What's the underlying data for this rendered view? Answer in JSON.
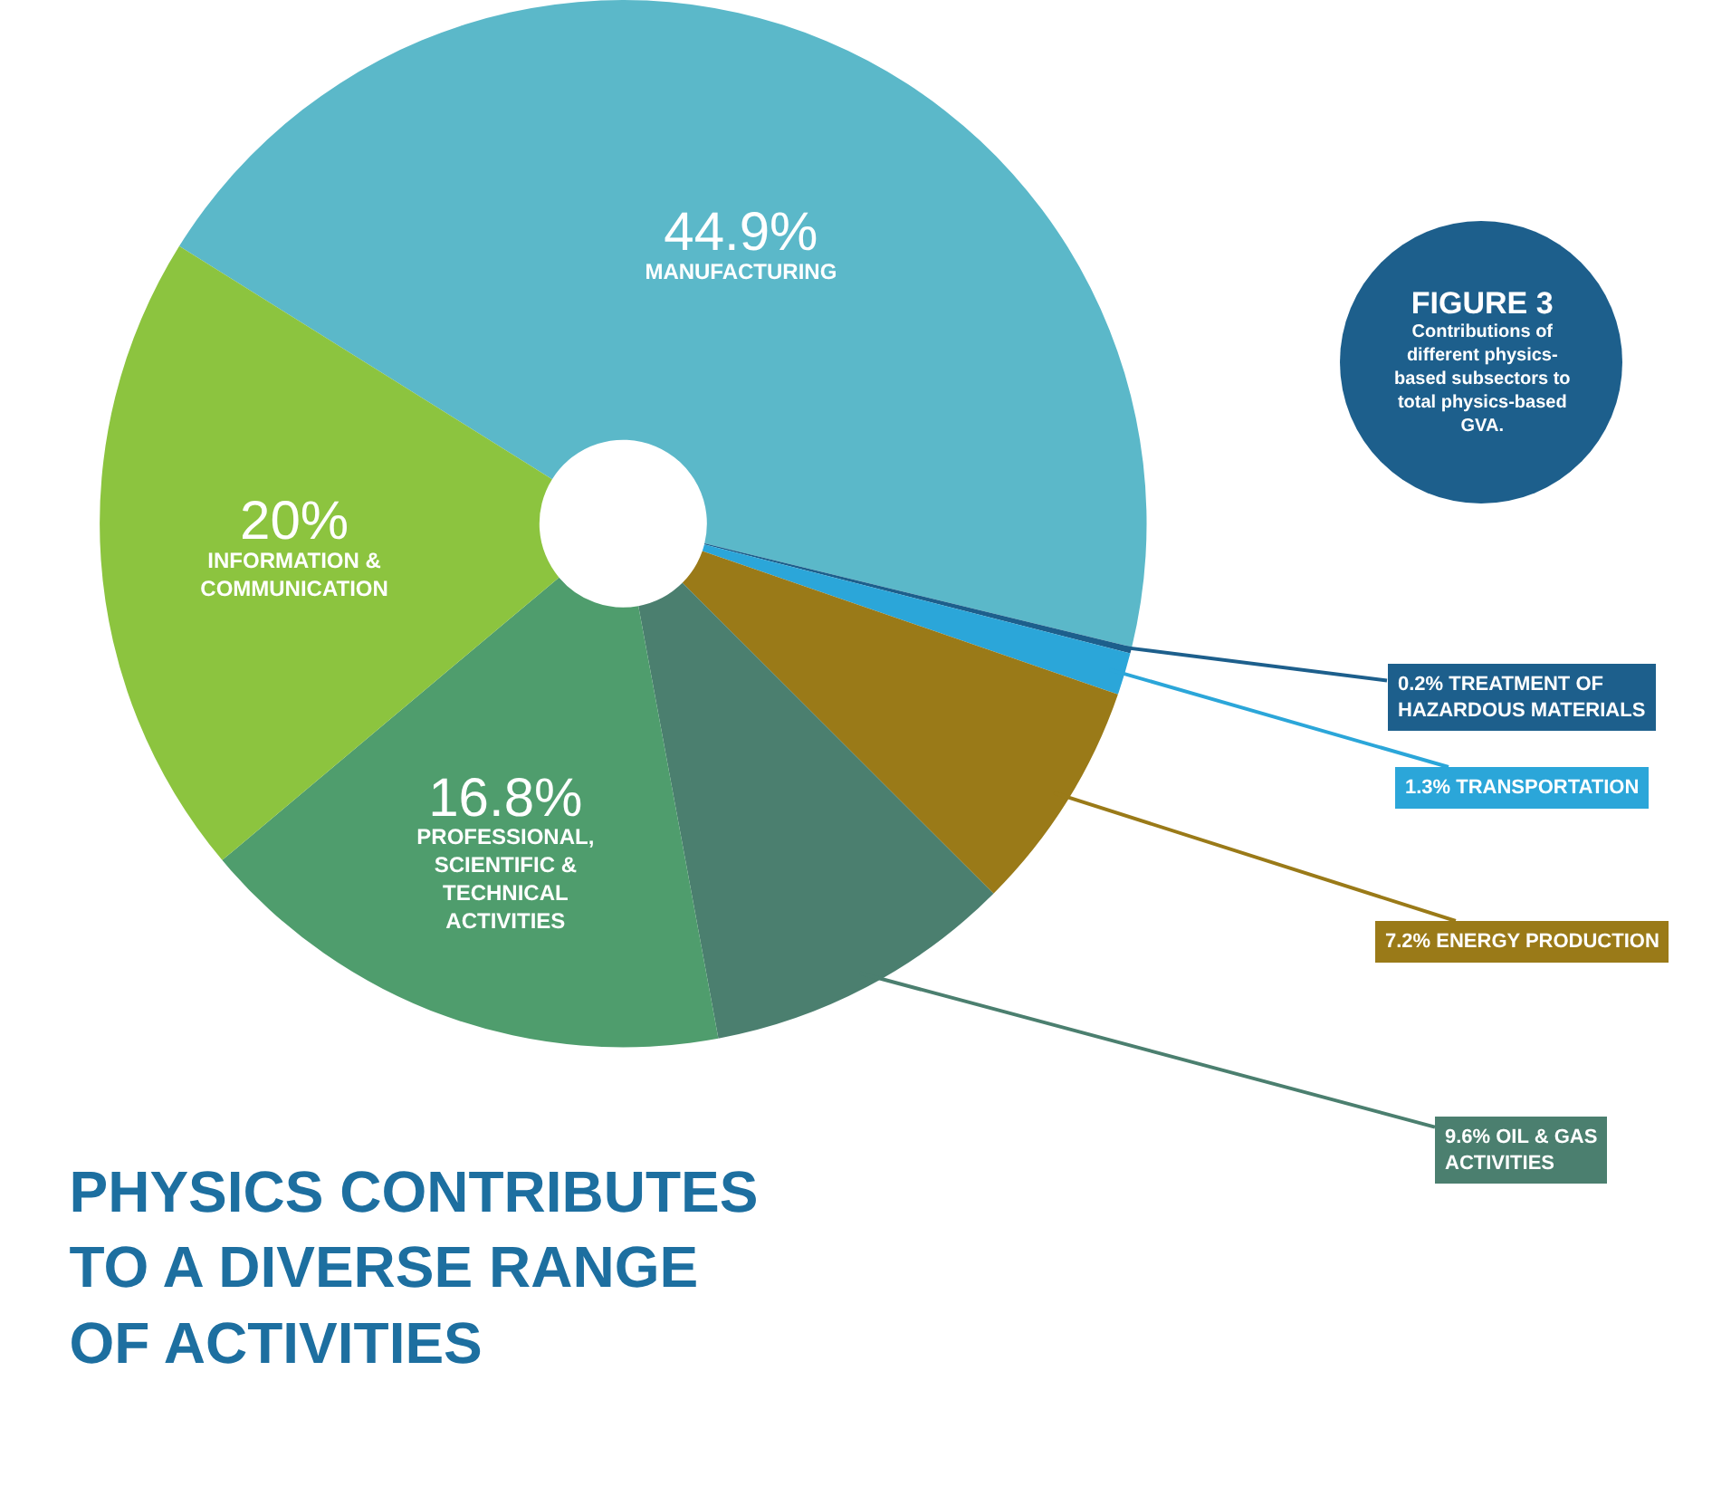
{
  "chart_data": {
    "type": "donut",
    "title": "PHYSICS CONTRIBUTES TO A DIVERSE RANGE OF ACTIVITIES",
    "categories": [
      "MANUFACTURING",
      "TREATMENT OF HAZARDOUS MATERIALS",
      "TRANSPORTATION",
      "ENERGY PRODUCTION",
      "OIL & GAS ACTIVITIES",
      "PROFESSIONAL, SCIENTIFIC & TECHNICAL ACTIVITIES",
      "INFORMATION & COMMUNICATION"
    ],
    "values": [
      44.9,
      0.2,
      1.3,
      7.2,
      9.6,
      16.8,
      20
    ],
    "value_labels": [
      "44.9%",
      "0.2%",
      "1.3%",
      "7.2%",
      "9.6%",
      "16.8%",
      "20%"
    ],
    "colors": [
      "#5bb8c9",
      "#1d5f8c",
      "#2ba6d9",
      "#9a7a18",
      "#4b7f6f",
      "#4f9d6d",
      "#8cc43f"
    ],
    "annotations": [
      "FIGURE 3",
      "Contributions of different physics-based subsectors to total physics-based GVA."
    ]
  }
}
